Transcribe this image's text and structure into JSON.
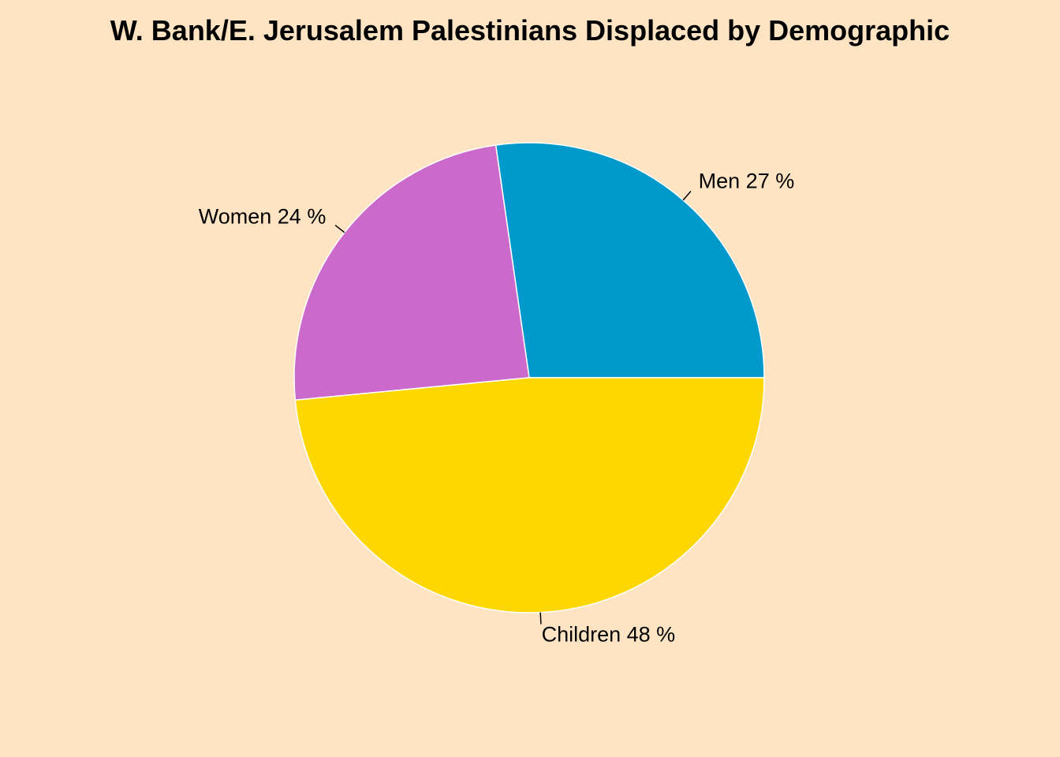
{
  "chart_data": {
    "type": "pie",
    "title": "W. Bank/E. Jerusalem Palestinians Displaced by Demographic",
    "background": "#FFE4C4",
    "slice_border_color": "#FFFFFF",
    "label_suffix": " %",
    "slices": [
      {
        "label": "Men",
        "value": 27,
        "color": "#0099CC"
      },
      {
        "label": "Women",
        "value": 24,
        "color": "#CC6ACC"
      },
      {
        "label": "Children",
        "value": 48,
        "color": "#FFD700"
      }
    ]
  }
}
